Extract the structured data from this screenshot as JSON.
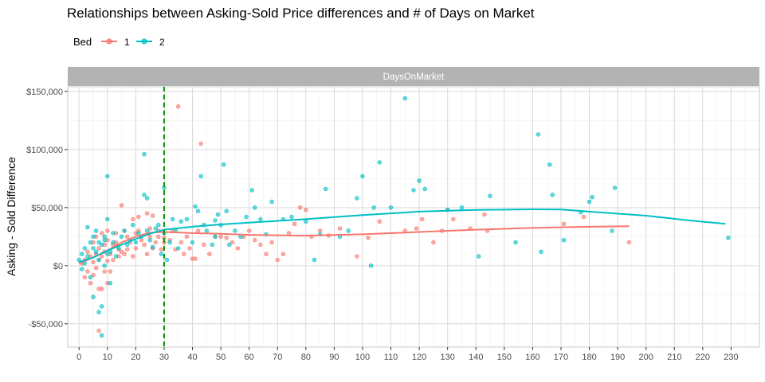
{
  "chart_data": {
    "type": "scatter",
    "title": "Relationships between Asking-Sold Price differences and # of Days on Market",
    "xlabel": "",
    "ylabel": "Asking - Sold Difference",
    "facet_label": "DaysOnMarket",
    "legend": {
      "title": "Bed",
      "position": "top-left",
      "entries": [
        "1",
        "2"
      ]
    },
    "xlim": [
      -4,
      240
    ],
    "ylim": [
      -70000,
      154000
    ],
    "x_ticks": [
      0,
      10,
      20,
      30,
      40,
      50,
      60,
      70,
      80,
      90,
      100,
      110,
      120,
      130,
      140,
      150,
      160,
      170,
      180,
      190,
      200,
      210,
      220,
      230
    ],
    "y_ticks": [
      -50000,
      0,
      50000,
      100000,
      150000
    ],
    "y_tick_labels": [
      "-$50,000",
      "$0",
      "$50,000",
      "$100,000",
      "$150,000"
    ],
    "grid": true,
    "vline": {
      "x": 30,
      "color": "#009900",
      "style": "dashed"
    },
    "colors": {
      "1": "#F8766D",
      "2": "#00BFC4",
      "strip_bg": "#b3b3b3",
      "grid": "#d9d9d9"
    },
    "series": [
      {
        "name": "1",
        "color": "#F8766D",
        "points": [
          [
            1,
            2000
          ],
          [
            2,
            5000
          ],
          [
            2,
            -10000
          ],
          [
            3,
            -5000
          ],
          [
            3,
            12000
          ],
          [
            4,
            8000
          ],
          [
            4,
            -15000
          ],
          [
            5,
            3000
          ],
          [
            5,
            20000
          ],
          [
            5,
            -8000
          ],
          [
            6,
            10000
          ],
          [
            6,
            -2000
          ],
          [
            6,
            25000
          ],
          [
            7,
            15000
          ],
          [
            7,
            -20000
          ],
          [
            7,
            5000
          ],
          [
            7,
            -56000
          ],
          [
            8,
            8000
          ],
          [
            8,
            28000
          ],
          [
            8,
            -20000
          ],
          [
            9,
            12000
          ],
          [
            9,
            18000
          ],
          [
            9,
            -5000
          ],
          [
            10,
            4000
          ],
          [
            10,
            22000
          ],
          [
            10,
            -15000
          ],
          [
            10,
            30000
          ],
          [
            11,
            10000
          ],
          [
            11,
            -5000
          ],
          [
            12,
            18000
          ],
          [
            12,
            5000
          ],
          [
            13,
            20000
          ],
          [
            13,
            28000
          ],
          [
            14,
            14000
          ],
          [
            14,
            8000
          ],
          [
            15,
            12000
          ],
          [
            15,
            52000
          ],
          [
            16,
            30000
          ],
          [
            16,
            10000
          ],
          [
            17,
            25000
          ],
          [
            17,
            14000
          ],
          [
            18,
            20000
          ],
          [
            19,
            8000
          ],
          [
            19,
            40000
          ],
          [
            20,
            28000
          ],
          [
            20,
            15000
          ],
          [
            21,
            30000
          ],
          [
            21,
            42000
          ],
          [
            22,
            22000
          ],
          [
            23,
            18000
          ],
          [
            24,
            45000
          ],
          [
            24,
            10000
          ],
          [
            25,
            25000
          ],
          [
            25,
            32000
          ],
          [
            26,
            15000
          ],
          [
            26,
            43000
          ],
          [
            27,
            20000
          ],
          [
            28,
            30000
          ],
          [
            28,
            25000
          ],
          [
            29,
            14000
          ],
          [
            30,
            20000
          ],
          [
            30,
            24000
          ],
          [
            32,
            22000
          ],
          [
            33,
            30000
          ],
          [
            34,
            14000
          ],
          [
            35,
            137000
          ],
          [
            36,
            20000
          ],
          [
            37,
            10000
          ],
          [
            38,
            25000
          ],
          [
            39,
            15000
          ],
          [
            40,
            6000
          ],
          [
            41,
            6000
          ],
          [
            42,
            30000
          ],
          [
            43,
            105000
          ],
          [
            44,
            18000
          ],
          [
            46,
            10000
          ],
          [
            48,
            25000
          ],
          [
            50,
            25000
          ],
          [
            52,
            24000
          ],
          [
            54,
            20000
          ],
          [
            56,
            15000
          ],
          [
            58,
            25000
          ],
          [
            60,
            30000
          ],
          [
            62,
            22000
          ],
          [
            64,
            18000
          ],
          [
            66,
            10000
          ],
          [
            68,
            20000
          ],
          [
            70,
            5000
          ],
          [
            72,
            10000
          ],
          [
            74,
            28000
          ],
          [
            76,
            36000
          ],
          [
            78,
            50000
          ],
          [
            80,
            48000
          ],
          [
            82,
            25000
          ],
          [
            85,
            30000
          ],
          [
            88,
            26000
          ],
          [
            92,
            32000
          ],
          [
            98,
            8000
          ],
          [
            102,
            24000
          ],
          [
            106,
            38000
          ],
          [
            115,
            30000
          ],
          [
            119,
            32000
          ],
          [
            121,
            40000
          ],
          [
            125,
            20000
          ],
          [
            128,
            30000
          ],
          [
            130,
            48000
          ],
          [
            132,
            40000
          ],
          [
            138,
            32000
          ],
          [
            143,
            44000
          ],
          [
            144,
            30000
          ],
          [
            171,
            36000
          ],
          [
            178,
            42000
          ],
          [
            194,
            20000
          ]
        ]
      },
      {
        "name": "2",
        "color": "#00BFC4",
        "points": [
          [
            0,
            5000
          ],
          [
            1,
            10000
          ],
          [
            1,
            -3000
          ],
          [
            2,
            15000
          ],
          [
            2,
            2000
          ],
          [
            3,
            33000
          ],
          [
            3,
            8000
          ],
          [
            4,
            20000
          ],
          [
            4,
            -10000
          ],
          [
            5,
            25000
          ],
          [
            5,
            15000
          ],
          [
            5,
            -27000
          ],
          [
            6,
            12000
          ],
          [
            6,
            30000
          ],
          [
            7,
            -40000
          ],
          [
            7,
            5000
          ],
          [
            7,
            20000
          ],
          [
            8,
            -35000
          ],
          [
            8,
            -60000
          ],
          [
            8,
            18000
          ],
          [
            9,
            0
          ],
          [
            9,
            25000
          ],
          [
            9,
            22000
          ],
          [
            10,
            77000
          ],
          [
            10,
            10000
          ],
          [
            10,
            40000
          ],
          [
            11,
            -15000
          ],
          [
            11,
            12000
          ],
          [
            12,
            20000
          ],
          [
            12,
            28000
          ],
          [
            13,
            8000
          ],
          [
            14,
            15000
          ],
          [
            15,
            25000
          ],
          [
            16,
            30000
          ],
          [
            17,
            18000
          ],
          [
            18,
            22000
          ],
          [
            19,
            35000
          ],
          [
            20,
            20000
          ],
          [
            21,
            28000
          ],
          [
            22,
            25000
          ],
          [
            23,
            61000
          ],
          [
            23,
            96000
          ],
          [
            24,
            58000
          ],
          [
            24,
            30000
          ],
          [
            25,
            22000
          ],
          [
            26,
            16000
          ],
          [
            27,
            32000
          ],
          [
            28,
            35000
          ],
          [
            29,
            10000
          ],
          [
            30,
            67000
          ],
          [
            30,
            28000
          ],
          [
            31,
            5000
          ],
          [
            32,
            20000
          ],
          [
            33,
            40000
          ],
          [
            34,
            30000
          ],
          [
            35,
            15000
          ],
          [
            36,
            38000
          ],
          [
            38,
            40000
          ],
          [
            40,
            20000
          ],
          [
            41,
            51000
          ],
          [
            42,
            47000
          ],
          [
            43,
            77000
          ],
          [
            44,
            35000
          ],
          [
            45,
            30000
          ],
          [
            47,
            18000
          ],
          [
            48,
            39000
          ],
          [
            48,
            25000
          ],
          [
            49,
            44000
          ],
          [
            50,
            35000
          ],
          [
            51,
            87000
          ],
          [
            52,
            47000
          ],
          [
            53,
            18000
          ],
          [
            55,
            30000
          ],
          [
            57,
            25000
          ],
          [
            59,
            42000
          ],
          [
            61,
            65000
          ],
          [
            62,
            50000
          ],
          [
            64,
            40000
          ],
          [
            66,
            27000
          ],
          [
            68,
            55000
          ],
          [
            72,
            40000
          ],
          [
            75,
            42000
          ],
          [
            80,
            38000
          ],
          [
            83,
            5000
          ],
          [
            85,
            27000
          ],
          [
            87,
            66000
          ],
          [
            92,
            25000
          ],
          [
            95,
            30000
          ],
          [
            98,
            58000
          ],
          [
            100,
            77000
          ],
          [
            103,
            0
          ],
          [
            104,
            50000
          ],
          [
            106,
            89000
          ],
          [
            110,
            50000
          ],
          [
            115,
            144000
          ],
          [
            118,
            65000
          ],
          [
            120,
            73000
          ],
          [
            122,
            66000
          ],
          [
            130,
            48000
          ],
          [
            135,
            50000
          ],
          [
            141,
            8000
          ],
          [
            145,
            60000
          ],
          [
            154,
            20000
          ],
          [
            162,
            113000
          ],
          [
            163,
            12000
          ],
          [
            166,
            87000
          ],
          [
            167,
            61000
          ],
          [
            171,
            22000
          ],
          [
            177,
            46000
          ],
          [
            180,
            55000
          ],
          [
            181,
            59000
          ],
          [
            188,
            30000
          ],
          [
            189,
            67000
          ],
          [
            229,
            24000
          ]
        ]
      }
    ],
    "smooth": [
      {
        "name": "1",
        "color": "#F8766D",
        "points": [
          [
            0,
            2000
          ],
          [
            5,
            7000
          ],
          [
            10,
            13000
          ],
          [
            15,
            20000
          ],
          [
            20,
            25000
          ],
          [
            25,
            28500
          ],
          [
            30,
            29000
          ],
          [
            40,
            28000
          ],
          [
            50,
            27500
          ],
          [
            60,
            26500
          ],
          [
            80,
            25800
          ],
          [
            100,
            27000
          ],
          [
            120,
            29000
          ],
          [
            140,
            31000
          ],
          [
            160,
            32500
          ],
          [
            180,
            33500
          ],
          [
            194,
            34000
          ]
        ]
      },
      {
        "name": "2",
        "color": "#00BFC4",
        "points": [
          [
            0,
            3000
          ],
          [
            5,
            7000
          ],
          [
            10,
            13000
          ],
          [
            15,
            18000
          ],
          [
            20,
            23000
          ],
          [
            25,
            27500
          ],
          [
            30,
            31000
          ],
          [
            40,
            33500
          ],
          [
            50,
            35500
          ],
          [
            60,
            37000
          ],
          [
            80,
            40000
          ],
          [
            100,
            43500
          ],
          [
            120,
            46500
          ],
          [
            140,
            48000
          ],
          [
            160,
            48500
          ],
          [
            170,
            48300
          ],
          [
            180,
            46500
          ],
          [
            200,
            43000
          ],
          [
            215,
            39000
          ],
          [
            228,
            36000
          ]
        ]
      }
    ]
  }
}
